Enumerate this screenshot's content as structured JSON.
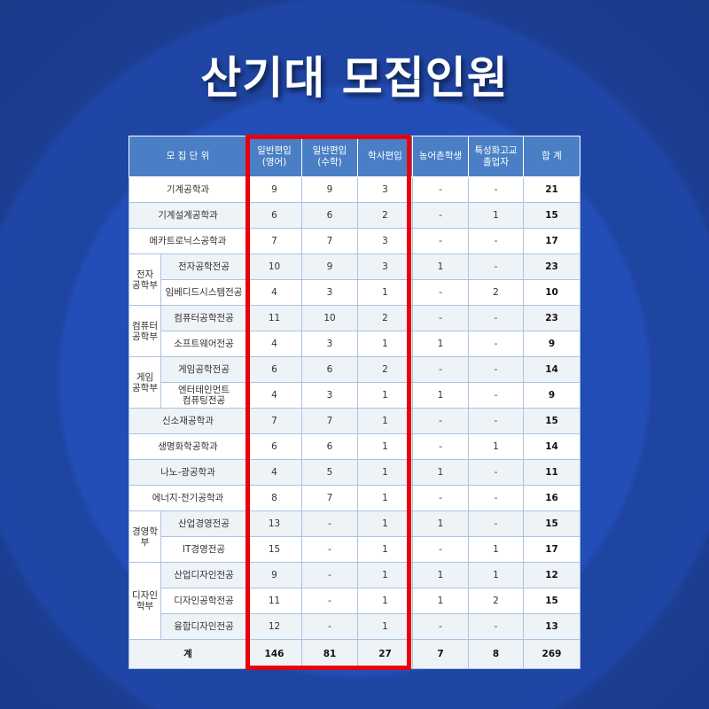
{
  "title": "산기대 모집인원",
  "colors": {
    "header": "#4a7fc6",
    "highlight": "#e8000b",
    "background": "#2a5fd6"
  },
  "table": {
    "headers": [
      "모 집  단 위",
      "일반편입\n(영어)",
      "일반편입\n(수학)",
      "학사편입",
      "농어촌학생",
      "특성화고교\n졸업자",
      "합 계"
    ],
    "rows": [
      {
        "group": "",
        "unit": "기계공학과",
        "values": [
          "9",
          "9",
          "3",
          "-",
          "-",
          "21"
        ]
      },
      {
        "group": "",
        "unit": "기계설계공학과",
        "values": [
          "6",
          "6",
          "2",
          "-",
          "1",
          "15"
        ]
      },
      {
        "group": "",
        "unit": "메카트로닉스공학과",
        "values": [
          "7",
          "7",
          "3",
          "-",
          "-",
          "17"
        ]
      },
      {
        "group": "전자\n공학부",
        "span": 2,
        "unit": "전자공학전공",
        "values": [
          "10",
          "9",
          "3",
          "1",
          "-",
          "23"
        ]
      },
      {
        "group": "전자\n공학부",
        "unit": "임베디드시스템전공",
        "values": [
          "4",
          "3",
          "1",
          "-",
          "2",
          "10"
        ]
      },
      {
        "group": "컴퓨터\n공학부",
        "span": 2,
        "unit": "컴퓨터공학전공",
        "values": [
          "11",
          "10",
          "2",
          "-",
          "-",
          "23"
        ]
      },
      {
        "group": "컴퓨터\n공학부",
        "unit": "소프트웨어전공",
        "values": [
          "4",
          "3",
          "1",
          "1",
          "-",
          "9"
        ]
      },
      {
        "group": "게임\n공학부",
        "span": 2,
        "unit": "게임공학전공",
        "values": [
          "6",
          "6",
          "2",
          "-",
          "-",
          "14"
        ]
      },
      {
        "group": "게임\n공학부",
        "unit": "엔터테인먼트\n컴퓨팅전공",
        "values": [
          "4",
          "3",
          "1",
          "1",
          "-",
          "9"
        ]
      },
      {
        "group": "",
        "unit": "신소재공학과",
        "values": [
          "7",
          "7",
          "1",
          "-",
          "-",
          "15"
        ]
      },
      {
        "group": "",
        "unit": "생명화학공학과",
        "values": [
          "6",
          "6",
          "1",
          "-",
          "1",
          "14"
        ]
      },
      {
        "group": "",
        "unit": "나노-광공학과",
        "values": [
          "4",
          "5",
          "1",
          "1",
          "-",
          "11"
        ]
      },
      {
        "group": "",
        "unit": "에너지·전기공학과",
        "values": [
          "8",
          "7",
          "1",
          "-",
          "-",
          "16"
        ]
      },
      {
        "group": "경영학\n부",
        "span": 2,
        "unit": "산업경영전공",
        "values": [
          "13",
          "-",
          "1",
          "1",
          "-",
          "15"
        ]
      },
      {
        "group": "경영학\n부",
        "unit": "IT경영전공",
        "values": [
          "15",
          "-",
          "1",
          "-",
          "1",
          "17"
        ]
      },
      {
        "group": "디자인\n학부",
        "span": 3,
        "unit": "산업디자인전공",
        "values": [
          "9",
          "-",
          "1",
          "1",
          "1",
          "12"
        ]
      },
      {
        "group": "디자인\n학부",
        "unit": "디자인공학전공",
        "values": [
          "11",
          "-",
          "1",
          "1",
          "2",
          "15"
        ]
      },
      {
        "group": "디자인\n학부",
        "unit": "융합디자인전공",
        "values": [
          "12",
          "-",
          "1",
          "-",
          "-",
          "13"
        ]
      }
    ],
    "total": {
      "label": "계",
      "values": [
        "146",
        "81",
        "27",
        "7",
        "8",
        "269"
      ]
    }
  }
}
